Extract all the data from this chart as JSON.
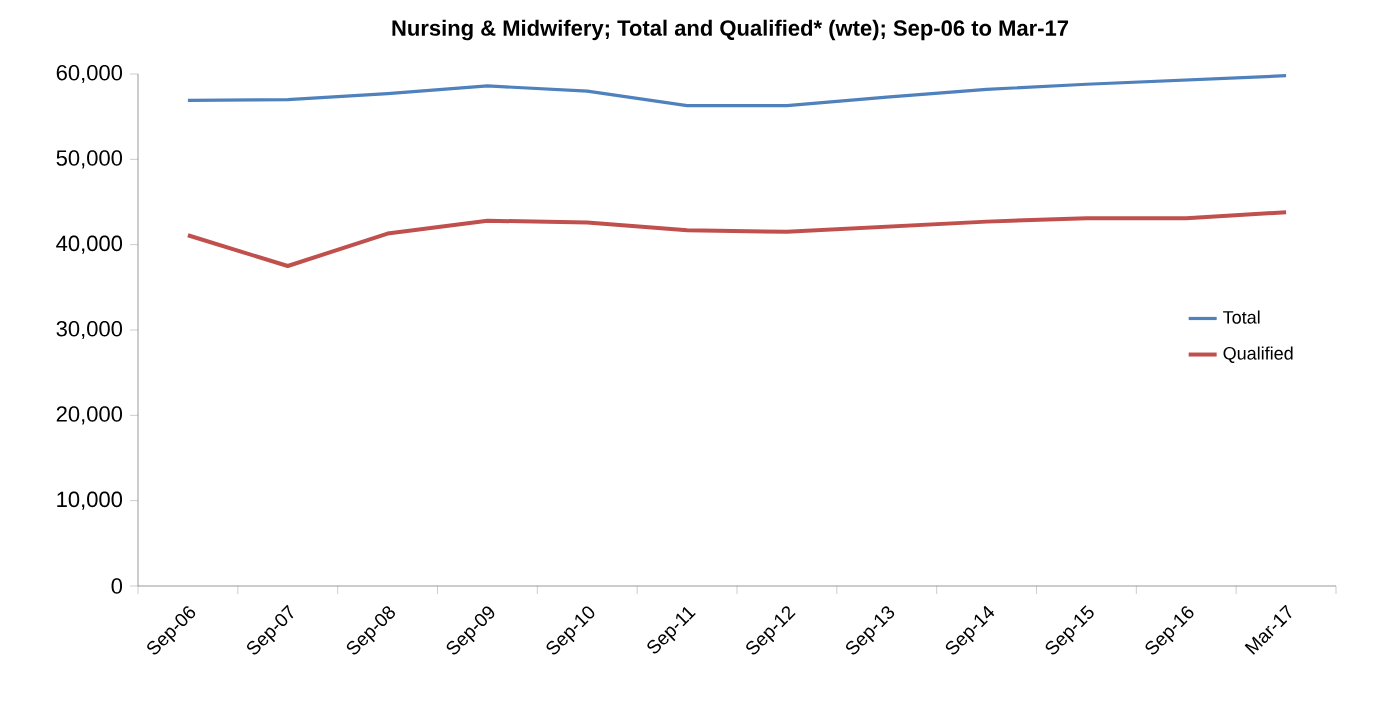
{
  "chart_data": {
    "type": "line",
    "title": "Nursing & Midwifery; Total and Qualified* (wte); Sep-06 to Mar-17",
    "categories": [
      "Sep-06",
      "Sep-07",
      "Sep-08",
      "Sep-09",
      "Sep-10",
      "Sep-11",
      "Sep-12",
      "Sep-13",
      "Sep-14",
      "Sep-15",
      "Sep-16",
      "Mar-17"
    ],
    "series": [
      {
        "name": "Total",
        "color": "#4f81bd",
        "values": [
          56900,
          57000,
          57700,
          58600,
          58000,
          56300,
          56300,
          57300,
          58200,
          58800,
          59300,
          59800
        ]
      },
      {
        "name": "Qualified",
        "color": "#c0504d",
        "values": [
          41100,
          37500,
          41300,
          42800,
          42600,
          41700,
          41500,
          42100,
          42700,
          43100,
          43100,
          43800
        ]
      }
    ],
    "ylim": [
      0,
      60000
    ],
    "yticks": [
      {
        "value": 0,
        "label": "0"
      },
      {
        "value": 10000,
        "label": "10,000"
      },
      {
        "value": 20000,
        "label": "20,000"
      },
      {
        "value": 30000,
        "label": "30,000"
      },
      {
        "value": 40000,
        "label": "40,000"
      },
      {
        "value": 50000,
        "label": "50,000"
      },
      {
        "value": 60000,
        "label": "60,000"
      }
    ],
    "legend": "right",
    "grid": false,
    "marker": "none",
    "line_style": "solid"
  }
}
